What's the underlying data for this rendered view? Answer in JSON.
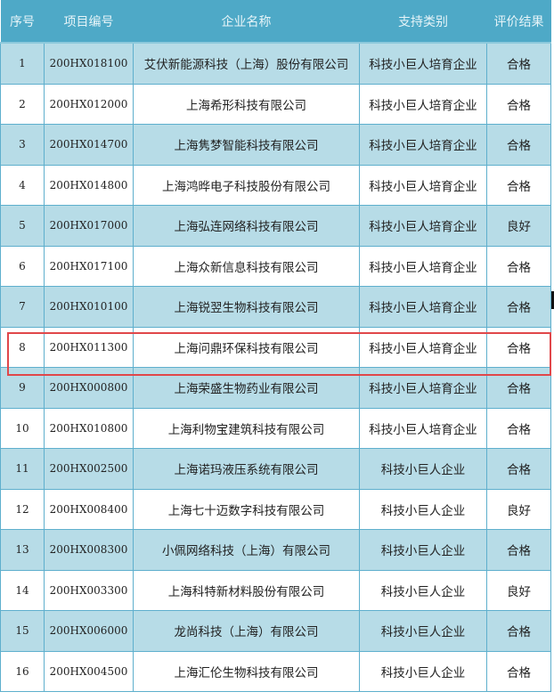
{
  "table": {
    "headers": [
      "序号",
      "项目编号",
      "企业名称",
      "支持类别",
      "评价结果"
    ],
    "rows": [
      {
        "no": "1",
        "code": "200HX018100",
        "name": "艾伏新能源科技（上海）股份有限公司",
        "category": "科技小巨人培育企业",
        "result": "合格"
      },
      {
        "no": "2",
        "code": "200HX012000",
        "name": "上海希形科技有限公司",
        "category": "科技小巨人培育企业",
        "result": "合格"
      },
      {
        "no": "3",
        "code": "200HX014700",
        "name": "上海隽梦智能科技有限公司",
        "category": "科技小巨人培育企业",
        "result": "合格"
      },
      {
        "no": "4",
        "code": "200HX014800",
        "name": "上海鸿晔电子科技股份有限公司",
        "category": "科技小巨人培育企业",
        "result": "合格"
      },
      {
        "no": "5",
        "code": "200HX017000",
        "name": "上海弘连网络科技有限公司",
        "category": "科技小巨人培育企业",
        "result": "良好"
      },
      {
        "no": "6",
        "code": "200HX017100",
        "name": "上海众新信息科技有限公司",
        "category": "科技小巨人培育企业",
        "result": "合格"
      },
      {
        "no": "7",
        "code": "200HX010100",
        "name": "上海锐翌生物科技有限公司",
        "category": "科技小巨人培育企业",
        "result": "合格"
      },
      {
        "no": "8",
        "code": "200HX011300",
        "name": "上海问鼎环保科技有限公司",
        "category": "科技小巨人培育企业",
        "result": "合格"
      },
      {
        "no": "9",
        "code": "200HX000800",
        "name": "上海荣盛生物药业有限公司",
        "category": "科技小巨人培育企业",
        "result": "合格"
      },
      {
        "no": "10",
        "code": "200HX010800",
        "name": "上海利物宝建筑科技有限公司",
        "category": "科技小巨人培育企业",
        "result": "合格"
      },
      {
        "no": "11",
        "code": "200HX002500",
        "name": "上海诺玛液压系统有限公司",
        "category": "科技小巨人企业",
        "result": "合格"
      },
      {
        "no": "12",
        "code": "200HX008400",
        "name": "上海七十迈数字科技有限公司",
        "category": "科技小巨人企业",
        "result": "良好"
      },
      {
        "no": "13",
        "code": "200HX008300",
        "name": "小佩网络科技（上海）有限公司",
        "category": "科技小巨人企业",
        "result": "合格"
      },
      {
        "no": "14",
        "code": "200HX003300",
        "name": "上海科特新材料股份有限公司",
        "category": "科技小巨人企业",
        "result": "良好"
      },
      {
        "no": "15",
        "code": "200HX006000",
        "name": "龙尚科技（上海）有限公司",
        "category": "科技小巨人企业",
        "result": "合格"
      },
      {
        "no": "16",
        "code": "200HX004500",
        "name": "上海汇伦生物科技有限公司",
        "category": "科技小巨人企业",
        "result": "合格"
      }
    ],
    "highlighted_row": "8"
  },
  "colors": {
    "header": "#4ea9c7",
    "shaded_row": "#b7dce7",
    "border": "#5eafcd",
    "highlight": "#e0474a"
  }
}
